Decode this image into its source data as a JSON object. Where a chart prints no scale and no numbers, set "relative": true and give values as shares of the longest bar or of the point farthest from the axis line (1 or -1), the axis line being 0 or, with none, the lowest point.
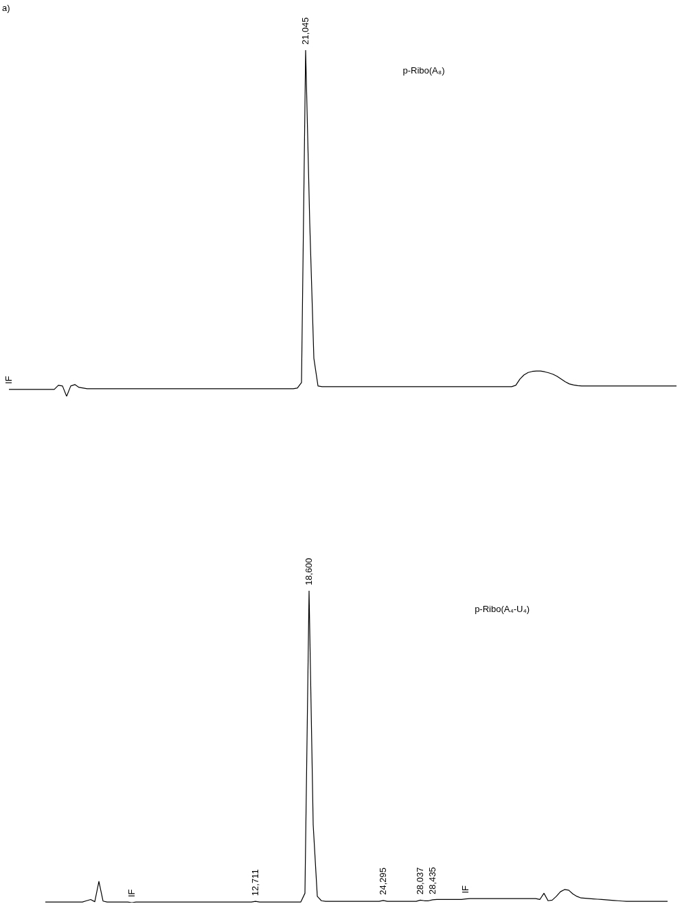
{
  "chart_data": [
    {
      "type": "line",
      "title": "a)",
      "relative": true,
      "categories": [
        null,
        null,
        null,
        null,
        null,
        null,
        null,
        null,
        null,
        null,
        null,
        null,
        null,
        null,
        null,
        null,
        null,
        null,
        null,
        null,
        null,
        null,
        null,
        null,
        null,
        null,
        null,
        null,
        null,
        null,
        null,
        null,
        null,
        null,
        null,
        null,
        null,
        null,
        null,
        null,
        null,
        null,
        null,
        null,
        null,
        null,
        null,
        null,
        null,
        null,
        null,
        null,
        null,
        null,
        null,
        null,
        null,
        null,
        null,
        null,
        null,
        null,
        null,
        null,
        null,
        null,
        null,
        null,
        null,
        null,
        null,
        null,
        null,
        null,
        null,
        null,
        null,
        null,
        null,
        null,
        null,
        null,
        null,
        null,
        null,
        null,
        null,
        null,
        null,
        null,
        null,
        null,
        null,
        null,
        null,
        null,
        null,
        null,
        null,
        null,
        null,
        null,
        null,
        null,
        null,
        null,
        null,
        null,
        null,
        null,
        null,
        null,
        null,
        null,
        null,
        null,
        null,
        null,
        null,
        null,
        null,
        null,
        null,
        null,
        null,
        null,
        null,
        null,
        null,
        null,
        null,
        null,
        null,
        null,
        null,
        null,
        null,
        null,
        null,
        null,
        null,
        null,
        null,
        null,
        null,
        null,
        null,
        null,
        null,
        null,
        null,
        null,
        null,
        null,
        null,
        null,
        null,
        null,
        null,
        null,
        null,
        null,
        null
      ],
      "series": [
        {
          "name": "p-Ribo(A₈)",
          "color": "#000000",
          "values": [
            0.02,
            0.02,
            0.02,
            0.02,
            0.02,
            0.02,
            0.02,
            0.02,
            0.02,
            0.02,
            0.02,
            0.02,
            0.032,
            0.03,
            0,
            0.03,
            0.034,
            0.026,
            0.024,
            0.022,
            0.022,
            0.022,
            0.022,
            0.022,
            0.022,
            0.022,
            0.022,
            0.022,
            0.022,
            0.022,
            0.022,
            0.022,
            0.022,
            0.022,
            0.022,
            0.022,
            0.022,
            0.022,
            0.022,
            0.022,
            0.022,
            0.022,
            0.022,
            0.022,
            0.022,
            0.022,
            0.022,
            0.022,
            0.022,
            0.022,
            0.022,
            0.022,
            0.022,
            0.022,
            0.022,
            0.022,
            0.022,
            0.022,
            0.022,
            0.022,
            0.022,
            0.022,
            0.022,
            0.022,
            0.022,
            0.022,
            0.022,
            0.022,
            0.022,
            0.022,
            0.024,
            0.04,
            1,
            0.5,
            0.11,
            0.03,
            0.028,
            0.028,
            0.028,
            0.028,
            0.028,
            0.028,
            0.028,
            0.028,
            0.028,
            0.028,
            0.028,
            0.028,
            0.028,
            0.028,
            0.028,
            0.028,
            0.028,
            0.028,
            0.028,
            0.028,
            0.028,
            0.028,
            0.028,
            0.028,
            0.028,
            0.028,
            0.028,
            0.028,
            0.028,
            0.028,
            0.028,
            0.028,
            0.028,
            0.028,
            0.028,
            0.028,
            0.028,
            0.028,
            0.028,
            0.028,
            0.028,
            0.028,
            0.028,
            0.028,
            0.028,
            0.028,
            0.028,
            0.032,
            0.05,
            0.062,
            0.069,
            0.072,
            0.073,
            0.073,
            0.071,
            0.068,
            0.064,
            0.058,
            0.05,
            0.042,
            0.036,
            0.033,
            0.031,
            0.03,
            0.03,
            0.03,
            0.03,
            0.03,
            0.03,
            0.03,
            0.03,
            0.03,
            0.03,
            0.03,
            0.03,
            0.03,
            0.03,
            0.03,
            0.03,
            0.03,
            0.03,
            0.03,
            0.03,
            0.03,
            0.03,
            0.03,
            0.03
          ]
        }
      ],
      "annotations": [
        {
          "text": "IF",
          "y": 0.02
        },
        {
          "text": "21,045",
          "y": 1
        }
      ]
    },
    {
      "type": "line",
      "relative": true,
      "categories": [
        null,
        null,
        null,
        null,
        null,
        null,
        null,
        null,
        null,
        null,
        null,
        null,
        null,
        null,
        null,
        null,
        null,
        null,
        null,
        null,
        null,
        null,
        null,
        null,
        null,
        null,
        null,
        null,
        null,
        null,
        null,
        null,
        null,
        null,
        null,
        null,
        null,
        null,
        null,
        null,
        null,
        null,
        null,
        null,
        null,
        null,
        null,
        null,
        null,
        null,
        null,
        null,
        null,
        null,
        null,
        null,
        null,
        null,
        null,
        null,
        null,
        null,
        null,
        null,
        null,
        null,
        null,
        null,
        null,
        null,
        null,
        null,
        null,
        null,
        null,
        null,
        null,
        null,
        null,
        null,
        null,
        null,
        null,
        null,
        null,
        null,
        null,
        null,
        null,
        null,
        null,
        null,
        null,
        null,
        null,
        null,
        null,
        null,
        null,
        null,
        null,
        null,
        null,
        null,
        null,
        null,
        null,
        null,
        null,
        null,
        null,
        null,
        null,
        null,
        null,
        null,
        null,
        null,
        null,
        null,
        null,
        null,
        null,
        null,
        null,
        null,
        null,
        null,
        null,
        null,
        null,
        null,
        null,
        null,
        null,
        null,
        null,
        null,
        null,
        null,
        null,
        null,
        null,
        null,
        null,
        null,
        null,
        null,
        null,
        null,
        null,
        null
      ],
      "series": [
        {
          "name": "p-Ribo(A₄-U₄)",
          "color": "#000000",
          "values": [
            0.002,
            0.002,
            0.002,
            0.002,
            0.002,
            0.002,
            0.002,
            0.002,
            0.002,
            0.002,
            0.006,
            0.01,
            0.003,
            0.068,
            0.005,
            0.002,
            0.002,
            0.002,
            0.002,
            0.002,
            0.002,
            0,
            0.002,
            0.002,
            0.002,
            0.002,
            0.002,
            0.002,
            0.002,
            0.002,
            0.002,
            0.002,
            0.002,
            0.002,
            0.002,
            0.002,
            0.002,
            0.002,
            0.002,
            0.002,
            0.002,
            0.002,
            0.002,
            0.002,
            0.002,
            0.002,
            0.002,
            0.002,
            0.002,
            0.002,
            0.002,
            0.004,
            0.002,
            0.002,
            0.002,
            0.002,
            0.002,
            0.002,
            0.002,
            0.002,
            0.002,
            0.002,
            0.002,
            0.03,
            1,
            0.25,
            0.02,
            0.006,
            0.004,
            0.004,
            0.004,
            0.004,
            0.004,
            0.004,
            0.004,
            0.004,
            0.004,
            0.004,
            0.004,
            0.004,
            0.004,
            0.004,
            0.007,
            0.004,
            0.004,
            0.004,
            0.004,
            0.004,
            0.004,
            0.004,
            0.004,
            0.008,
            0.006,
            0.006,
            0.009,
            0.01,
            0.01,
            0.01,
            0.01,
            0.01,
            0.01,
            0.01,
            0.012,
            0.013,
            0.013,
            0.013,
            0.013,
            0.013,
            0.013,
            0.013,
            0.013,
            0.013,
            0.013,
            0.013,
            0.013,
            0.013,
            0.013,
            0.013,
            0.013,
            0.013,
            0.01,
            0.03,
            0.006,
            0.008,
            0.02,
            0.035,
            0.042,
            0.04,
            0.028,
            0.02,
            0.015,
            0.014,
            0.013,
            0.012,
            0.011,
            0.01,
            0.009,
            0.008,
            0.007,
            0.006,
            0.005,
            0.004,
            0.004,
            0.004,
            0.004,
            0.004,
            0.004,
            0.004,
            0.004,
            0.004,
            0.004,
            0.004
          ]
        }
      ],
      "annotations": [
        {
          "text": "IF",
          "y": 0
        },
        {
          "text": "12,711",
          "y": 0.004
        },
        {
          "text": "18,600",
          "y": 1
        },
        {
          "text": "24,295",
          "y": 0.007
        },
        {
          "text": "28,037",
          "y": 0.008
        },
        {
          "text": "28,435",
          "y": 0.009
        },
        {
          "text": "IF",
          "y": 0.012
        }
      ]
    }
  ]
}
